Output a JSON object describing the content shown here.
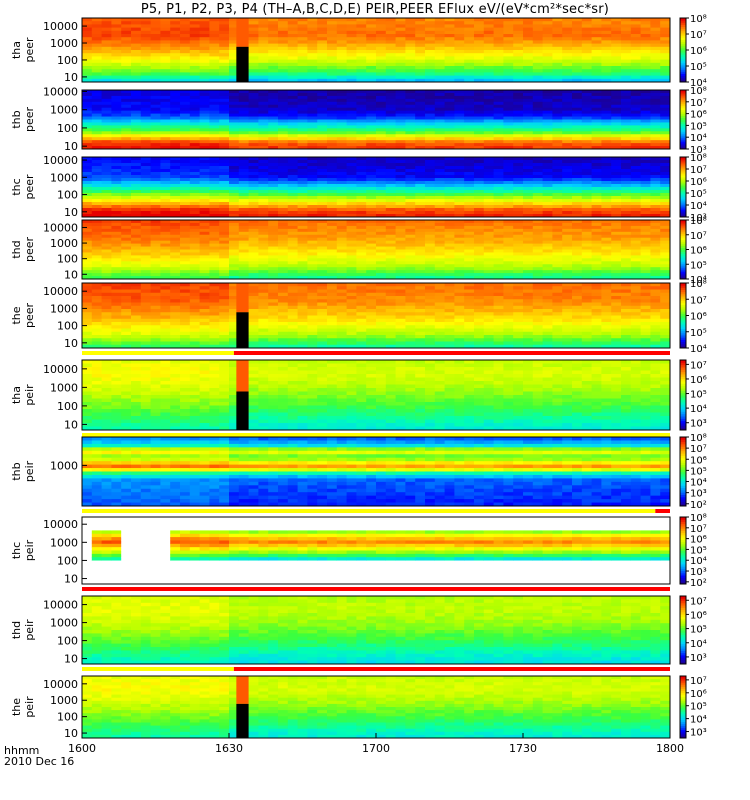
{
  "title": "P5, P1, P2, P3, P4 (TH–A,B,C,D,E) PEIR,PEER EFlux eV/(eV*cm²*sec*sr)",
  "x_axis": {
    "name": "hhmm",
    "date": "2010 Dec 16",
    "ticks": [
      "1600",
      "1630",
      "1700",
      "1730",
      "1800"
    ],
    "range": [
      0,
      120
    ]
  },
  "colors": {
    "spectrum": [
      "#1e008c",
      "#0000ff",
      "#0078ff",
      "#00d2ff",
      "#00ffb4",
      "#3cff3c",
      "#b4ff00",
      "#ffff00",
      "#ffb400",
      "#ff5a00",
      "#e60000"
    ],
    "quality_good": "#ffff00",
    "quality_bad": "#ff0000",
    "missing": "#000000"
  },
  "chart_data": [
    {
      "type": "heatmap",
      "probe": "tha",
      "label_line1": "tha",
      "label_line2": "peer",
      "y_ticks": [
        "10",
        "100",
        "1000",
        "10000"
      ],
      "y_log": true,
      "y_range": [
        5,
        30000
      ],
      "cbar_ticks": [
        "10⁴",
        "10⁵",
        "10⁶",
        "10⁷",
        "10⁸"
      ],
      "cbar_exp_range": [
        4,
        8
      ],
      "bands": [
        [
          1,
          0.0
        ],
        [
          5,
          0.25
        ],
        [
          15,
          0.45
        ],
        [
          100,
          0.65
        ],
        [
          700,
          0.8
        ],
        [
          3000,
          0.88
        ],
        [
          30000,
          0.85
        ]
      ],
      "gap_minutes": [
        31.5,
        34
      ],
      "quality_bar": ""
    },
    {
      "type": "heatmap",
      "probe": "thb",
      "label_line1": "thb",
      "label_line2": "peer",
      "y_ticks": [
        "10",
        "100",
        "1000",
        "10000"
      ],
      "y_log": true,
      "y_range": [
        7,
        12000
      ],
      "cbar_ticks": [
        "10³",
        "10⁴",
        "10⁵",
        "10⁶",
        "10⁷",
        "10⁸"
      ],
      "cbar_exp_range": [
        3,
        8
      ],
      "bands": [
        [
          7,
          0.95
        ],
        [
          15,
          0.9
        ],
        [
          30,
          0.72
        ],
        [
          60,
          0.5
        ],
        [
          200,
          0.28
        ],
        [
          400,
          0.12
        ],
        [
          1000,
          0.05
        ],
        [
          12000,
          0.02
        ]
      ],
      "gap_minutes": null,
      "quality_bar": ""
    },
    {
      "type": "heatmap",
      "probe": "thc",
      "label_line1": "thc",
      "label_line2": "peer",
      "y_ticks": [
        "10",
        "100",
        "1000",
        "10000"
      ],
      "y_log": true,
      "y_range": [
        5,
        15000
      ],
      "cbar_ticks": [
        "10³",
        "10⁴",
        "10⁵",
        "10⁶",
        "10⁷",
        "10⁸"
      ],
      "cbar_exp_range": [
        3,
        8
      ],
      "bands": [
        [
          5,
          0.97
        ],
        [
          12,
          0.92
        ],
        [
          30,
          0.75
        ],
        [
          80,
          0.55
        ],
        [
          300,
          0.3
        ],
        [
          1000,
          0.1
        ],
        [
          15000,
          0.04
        ]
      ],
      "gap_minutes": null,
      "quality_bar": ""
    },
    {
      "type": "heatmap",
      "probe": "thd",
      "label_line1": "thd",
      "label_line2": "peer",
      "y_ticks": [
        "10",
        "100",
        "1000",
        "10000"
      ],
      "y_log": true,
      "y_range": [
        5,
        30000
      ],
      "cbar_ticks": [
        "10⁴",
        "10⁵",
        "10⁶",
        "10⁷",
        "10⁸"
      ],
      "cbar_exp_range": [
        4,
        8
      ],
      "bands": [
        [
          1,
          0.3
        ],
        [
          8,
          0.45
        ],
        [
          30,
          0.6
        ],
        [
          200,
          0.72
        ],
        [
          2000,
          0.82
        ],
        [
          30000,
          0.88
        ]
      ],
      "gap_minutes": null,
      "quality_bar": ""
    },
    {
      "type": "heatmap",
      "probe": "the",
      "label_line1": "the",
      "label_line2": "peer",
      "y_ticks": [
        "10",
        "100",
        "1000",
        "10000"
      ],
      "y_log": true,
      "y_range": [
        5,
        30000
      ],
      "cbar_ticks": [
        "10⁴",
        "10⁵",
        "10⁶",
        "10⁷",
        "10⁸"
      ],
      "cbar_exp_range": [
        4,
        8
      ],
      "bands": [
        [
          1,
          0.2
        ],
        [
          8,
          0.45
        ],
        [
          30,
          0.6
        ],
        [
          300,
          0.75
        ],
        [
          3000,
          0.85
        ],
        [
          30000,
          0.88
        ]
      ],
      "gap_minutes": [
        31.5,
        34
      ],
      "quality_bar": "good_until_31"
    },
    {
      "type": "heatmap",
      "probe": "tha",
      "label_line1": "tha",
      "label_line2": "peir",
      "y_ticks": [
        "10",
        "100",
        "1000",
        "10000"
      ],
      "y_log": true,
      "y_range": [
        5,
        30000
      ],
      "cbar_ticks": [
        "10³",
        "10⁴",
        "10⁵",
        "10⁶",
        "10⁷"
      ],
      "cbar_exp_range": [
        2.5,
        7.3
      ],
      "bands": [
        [
          1,
          0.3
        ],
        [
          10,
          0.38
        ],
        [
          100,
          0.5
        ],
        [
          1000,
          0.6
        ],
        [
          5000,
          0.65
        ],
        [
          30000,
          0.62
        ]
      ],
      "gap_minutes": [
        31.5,
        34
      ],
      "quality_bar": "good_all"
    },
    {
      "type": "heatmap",
      "probe": "thb",
      "label_line1": "thb",
      "label_line2": "peir",
      "y_ticks": [
        "1000"
      ],
      "y_log": true,
      "y_range": [
        10,
        25000
      ],
      "cbar_ticks": [
        "10²",
        "10³",
        "10⁴",
        "10⁵",
        "10⁶",
        "10⁷",
        "10⁸"
      ],
      "cbar_exp_range": [
        1.8,
        8
      ],
      "bands": [
        [
          10,
          0.12
        ],
        [
          200,
          0.18
        ],
        [
          400,
          0.38
        ],
        [
          800,
          0.85
        ],
        [
          1300,
          0.72
        ],
        [
          2500,
          0.5
        ],
        [
          5000,
          0.7
        ],
        [
          10000,
          0.3
        ],
        [
          25000,
          0.15
        ]
      ],
      "gap_minutes": null,
      "quality_bar": "good_then_bad"
    },
    {
      "type": "heatmap",
      "probe": "thc",
      "label_line1": "thc",
      "label_line2": "peir",
      "y_ticks": [
        "10",
        "100",
        "1000",
        "10000"
      ],
      "y_log": true,
      "y_range": [
        5,
        25000
      ],
      "cbar_ticks": [
        "10²",
        "10³",
        "10⁴",
        "10⁵",
        "10⁶",
        "10⁷",
        "10⁸"
      ],
      "cbar_exp_range": [
        1.8,
        8
      ],
      "bands": [
        [
          120,
          0.35
        ],
        [
          250,
          0.55
        ],
        [
          600,
          0.75
        ],
        [
          1000,
          0.85
        ],
        [
          2000,
          0.75
        ],
        [
          4000,
          0.55
        ]
      ],
      "gap_minutes": null,
      "blank_minutes": [
        [
          0,
          2
        ],
        [
          7.5,
          18.5
        ]
      ],
      "band_range": [
        120,
        5000
      ],
      "quality_bar": "bad_all"
    },
    {
      "type": "heatmap",
      "probe": "thd",
      "label_line1": "thd",
      "label_line2": "peir",
      "y_ticks": [
        "10",
        "100",
        "1000",
        "10000"
      ],
      "y_log": true,
      "y_range": [
        5,
        30000
      ],
      "cbar_ticks": [
        "10³",
        "10⁴",
        "10⁵",
        "10⁶",
        "10⁷"
      ],
      "cbar_exp_range": [
        2.5,
        7.3
      ],
      "bands": [
        [
          1,
          0.28
        ],
        [
          10,
          0.35
        ],
        [
          100,
          0.48
        ],
        [
          1000,
          0.58
        ],
        [
          5000,
          0.62
        ],
        [
          30000,
          0.6
        ]
      ],
      "gap_minutes": null,
      "quality_bar": "good_until_31"
    },
    {
      "type": "heatmap",
      "probe": "the",
      "label_line1": "the",
      "label_line2": "peir",
      "y_ticks": [
        "10",
        "100",
        "1000",
        "10000"
      ],
      "y_log": true,
      "y_range": [
        5,
        30000
      ],
      "cbar_ticks": [
        "10³",
        "10⁴",
        "10⁵",
        "10⁶",
        "10⁷"
      ],
      "cbar_exp_range": [
        2.5,
        7.3
      ],
      "bands": [
        [
          1,
          0.3
        ],
        [
          10,
          0.38
        ],
        [
          100,
          0.5
        ],
        [
          1000,
          0.6
        ],
        [
          5000,
          0.65
        ],
        [
          30000,
          0.62
        ]
      ],
      "gap_minutes": [
        31.5,
        34
      ],
      "quality_bar": ""
    }
  ]
}
